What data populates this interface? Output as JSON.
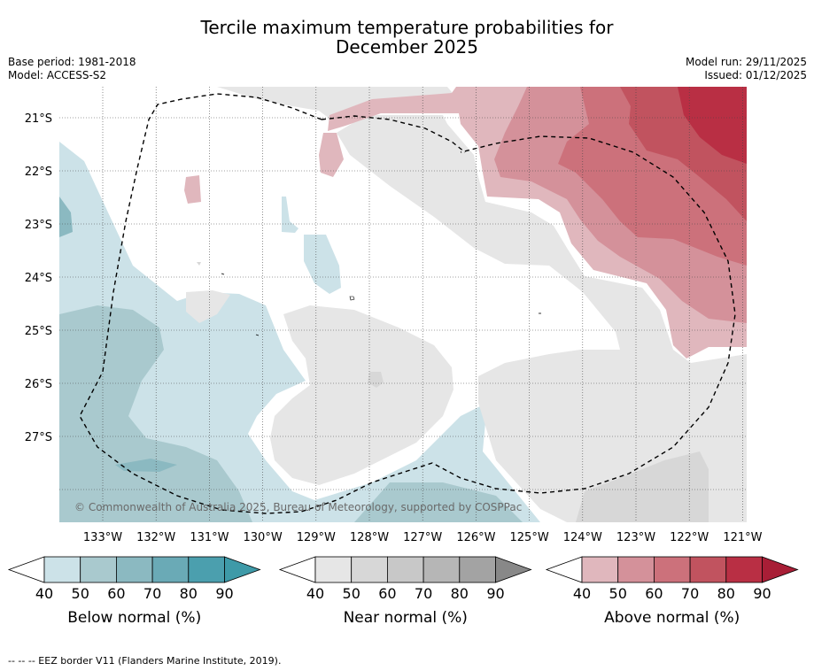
{
  "title_line1": "Tercile maximum temperature probabilities for",
  "title_line2": "December 2025",
  "base_period": "Base period: 1981-2018",
  "model": "Model: ACCESS-S2",
  "model_run": "Model run: 29/11/2025",
  "issued": "Issued: 01/12/2025",
  "copyright": "© Commonwealth of Australia 2025, Bureau of Meteorology, supported by COSPPac",
  "lon_labels": [
    "133°W",
    "132°W",
    "131°W",
    "130°W",
    "129°W",
    "128°W",
    "127°W",
    "126°W",
    "125°W",
    "124°W",
    "123°W",
    "122°W",
    "121°W"
  ],
  "lat_labels": [
    "21°S",
    "22°S",
    "23°S",
    "24°S",
    "25°S",
    "26°S",
    "27°S"
  ],
  "colorbars": [
    {
      "title": "Below normal (%)",
      "ticks": [
        "40",
        "50",
        "60",
        "70",
        "80",
        "90"
      ],
      "colors": [
        "#cce2e8",
        "#a9c9ce",
        "#8bb9c1",
        "#6aaab6",
        "#4b9fae",
        "#3e9aa8"
      ]
    },
    {
      "title": "Near normal (%)",
      "ticks": [
        "40",
        "50",
        "60",
        "70",
        "80",
        "90"
      ],
      "colors": [
        "#e6e6e6",
        "#d7d7d7",
        "#c8c8c8",
        "#b6b6b6",
        "#a3a3a3",
        "#888888"
      ]
    },
    {
      "title": "Above normal (%)",
      "ticks": [
        "40",
        "50",
        "60",
        "70",
        "80",
        "90"
      ],
      "colors": [
        "#e0b7bd",
        "#d4919a",
        "#cc717b",
        "#c1535f",
        "#b92f44",
        "#a81e36"
      ]
    }
  ],
  "footer": "--  --  -- EEZ border V11 (Flanders Marine Institute, 2019).",
  "colors": {
    "below40": "#cce2e8",
    "below50": "#a9c9ce",
    "below60": "#8bb9c1",
    "near40": "#e6e6e6",
    "near50": "#d7d7d7",
    "above40": "#e0b7bd",
    "above50": "#d4919a",
    "above60": "#cc717b",
    "above70": "#c1535f",
    "above80": "#b92f44"
  }
}
